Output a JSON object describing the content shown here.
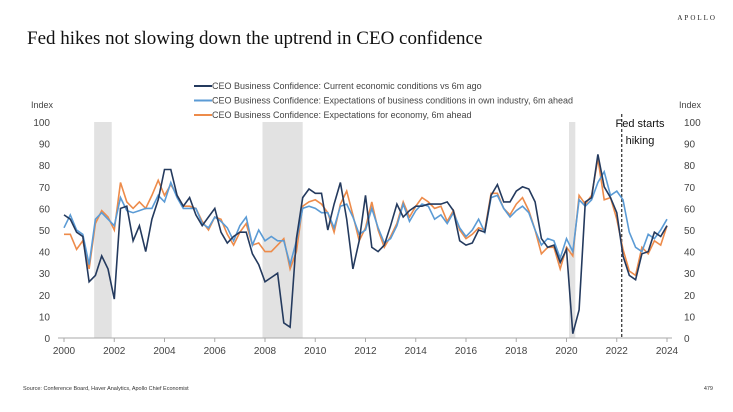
{
  "logo": "APOLLO",
  "title": "Fed hikes not slowing down the uptrend in CEO confidence",
  "source": "Source: Conference Board, Haver Analytics, Apollo Chief Economist",
  "page_number": "479",
  "chart_data": {
    "type": "line",
    "title": "",
    "ylabel_left": "Index",
    "ylabel_right": "Index",
    "ylim": [
      0,
      100
    ],
    "yticks": [
      0,
      10,
      20,
      30,
      40,
      50,
      60,
      70,
      80,
      90,
      100
    ],
    "xlim": [
      2000,
      2024.5
    ],
    "xticks": [
      "2000",
      "2002",
      "2004",
      "2006",
      "2008",
      "2010",
      "2012",
      "2014",
      "2016",
      "2018",
      "2020",
      "2022",
      "2024"
    ],
    "x_start": "2000 Q1",
    "frequency": "quarterly",
    "legend_position": "top",
    "recessions": [
      [
        2001.2,
        2001.9
      ],
      [
        2007.9,
        2009.5
      ],
      [
        2020.1,
        2020.35
      ]
    ],
    "annotation": {
      "x": 2022.2,
      "text_line1": "Fed starts",
      "text_line2": "hiking"
    },
    "series": [
      {
        "name": "CEO Business Confidence: Current economic conditions vs 6m ago",
        "color": "#243a5e",
        "values": [
          57,
          55,
          49,
          47,
          26,
          29,
          38,
          32,
          18,
          60,
          61,
          45,
          52,
          40,
          55,
          64,
          78,
          78,
          66,
          61,
          65,
          57,
          52,
          56,
          60,
          49,
          44,
          47,
          49,
          49,
          39,
          34,
          26,
          28,
          30,
          7,
          5,
          46,
          65,
          69,
          67,
          67,
          50,
          62,
          72,
          55,
          32,
          45,
          66,
          42,
          40,
          43,
          52,
          62,
          56,
          59,
          61,
          61,
          62,
          62,
          62,
          63,
          59,
          45,
          43,
          44,
          50,
          49,
          66,
          71,
          63,
          63,
          68,
          70,
          69,
          63,
          46,
          42,
          43,
          35,
          41,
          2,
          13,
          63,
          65,
          85,
          70,
          65,
          58,
          38,
          29,
          27,
          39,
          40,
          49,
          47,
          52
        ]
      },
      {
        "name": "CEO Business Confidence: Expectations of business conditions in own industry, 6m ahead",
        "color": "#5b9bd5",
        "values": [
          51,
          57,
          50,
          48,
          34,
          55,
          58,
          55,
          52,
          65,
          59,
          58,
          59,
          60,
          60,
          66,
          63,
          72,
          65,
          60,
          60,
          60,
          53,
          51,
          56,
          54,
          51,
          45,
          52,
          56,
          43,
          50,
          45,
          47,
          45,
          45,
          34,
          45,
          60,
          61,
          60,
          58,
          58,
          51,
          61,
          62,
          56,
          48,
          50,
          60,
          51,
          44,
          46,
          52,
          62,
          54,
          59,
          62,
          61,
          55,
          57,
          53,
          58,
          51,
          47,
          50,
          55,
          49,
          65,
          66,
          60,
          56,
          59,
          61,
          58,
          50,
          43,
          46,
          45,
          37,
          46,
          40,
          64,
          61,
          64,
          72,
          77,
          66,
          68,
          64,
          49,
          42,
          40,
          48,
          46,
          50,
          55
        ]
      },
      {
        "name": "CEO Business Confidence: Expectations for economy, 6m ahead",
        "color": "#ed8b4a",
        "values": [
          48,
          48,
          41,
          45,
          32,
          53,
          59,
          56,
          50,
          72,
          63,
          60,
          63,
          60,
          66,
          73,
          66,
          71,
          66,
          61,
          61,
          60,
          54,
          50,
          56,
          55,
          48,
          43,
          49,
          53,
          43,
          44,
          40,
          40,
          43,
          46,
          32,
          40,
          61,
          63,
          64,
          62,
          58,
          49,
          62,
          68,
          57,
          45,
          51,
          63,
          50,
          42,
          47,
          53,
          63,
          56,
          61,
          65,
          63,
          60,
          61,
          54,
          59,
          50,
          46,
          48,
          51,
          50,
          67,
          67,
          60,
          57,
          62,
          65,
          59,
          50,
          39,
          42,
          42,
          32,
          42,
          38,
          66,
          62,
          66,
          83,
          64,
          65,
          55,
          41,
          31,
          29,
          42,
          39,
          45,
          43,
          52
        ]
      }
    ]
  }
}
